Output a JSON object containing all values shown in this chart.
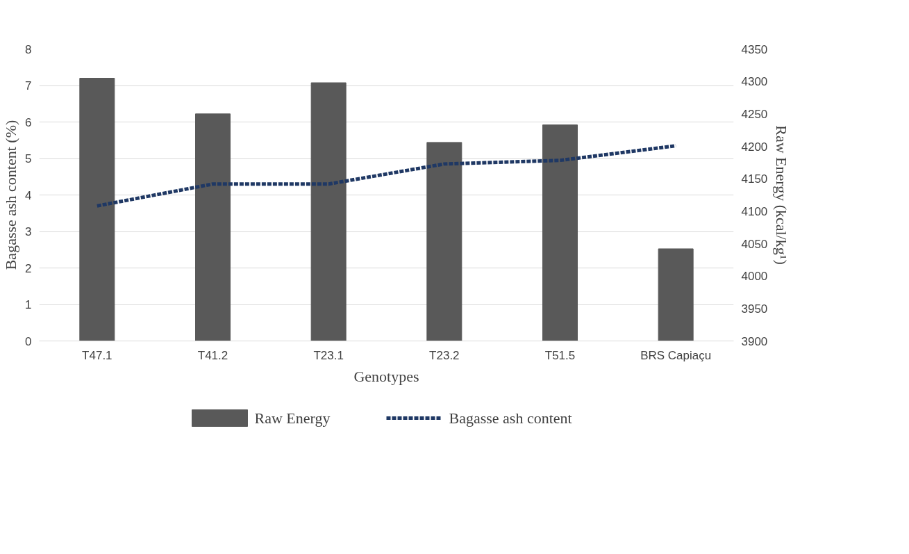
{
  "chart_data": {
    "type": "bar",
    "xlabel": "Genotypes",
    "ylabel": "Bagasse ash content (%)",
    "y2label": "Raw Energy (kcal/kg¹)",
    "categories": [
      "T47.1",
      "T41.2",
      "T23.1",
      "T23.2",
      "T51.5",
      "BRS Capiaçu"
    ],
    "series": [
      {
        "name": "Raw Energy",
        "axis": "y2",
        "color": "#595959",
        "values": [
          4305,
          4250,
          4298,
          4206,
          4233,
          4042
        ]
      },
      {
        "name": "Bagasse ash content",
        "type": "line",
        "axis": "y",
        "color": "#1f3864",
        "line_style": "dashed",
        "values": [
          3.7,
          4.3,
          4.3,
          4.85,
          4.95,
          5.35
        ]
      }
    ],
    "ylim": [
      0,
      8
    ],
    "yticks": [
      0,
      1,
      2,
      3,
      4,
      5,
      6,
      7,
      8
    ],
    "y2lim": [
      3900,
      4350
    ],
    "y2ticks": [
      3900,
      3950,
      4000,
      4050,
      4100,
      4150,
      4200,
      4250,
      4300,
      4350
    ],
    "grid": "y",
    "legend": "bottom"
  }
}
